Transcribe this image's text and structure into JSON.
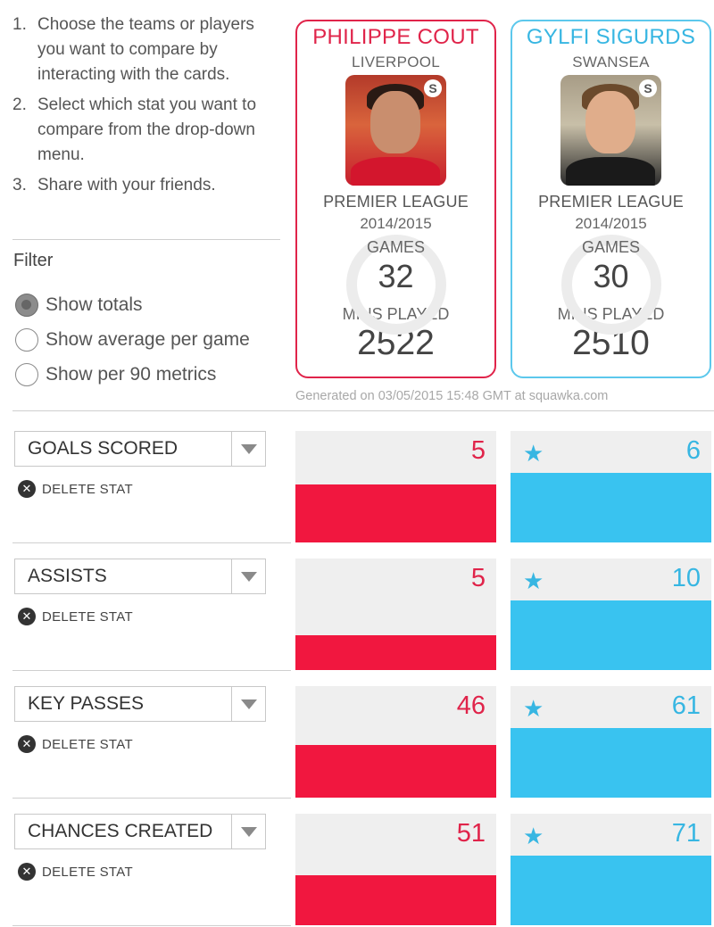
{
  "instructions": [
    {
      "num": "1.",
      "text": "Choose the teams or players you want to compare by interacting with the cards."
    },
    {
      "num": "2.",
      "text": "Select which stat you want to compare from the drop-down menu."
    },
    {
      "num": "3.",
      "text": "Share with your friends."
    }
  ],
  "filter": {
    "title": "Filter",
    "options": [
      {
        "label": "Show totals",
        "checked": true
      },
      {
        "label": "Show average per game",
        "checked": false
      },
      {
        "label": "Show per 90 metrics",
        "checked": false
      }
    ]
  },
  "players": [
    {
      "name": "PHILIPPE COUT",
      "club": "LIVERPOOL",
      "league": "PREMIER LEAGUE",
      "season": "2014/2015",
      "games_label": "GAMES",
      "games": "32",
      "mins_label": "MINS PLAYED",
      "mins": "2522",
      "color": "#e0244a",
      "badge": "S"
    },
    {
      "name": "GYLFI SIGURDS",
      "club": "SWANSEA",
      "league": "PREMIER LEAGUE",
      "season": "2014/2015",
      "games_label": "GAMES",
      "games": "30",
      "mins_label": "MINS PLAYED",
      "mins": "2510",
      "color": "#5cc8ec",
      "badge": "S"
    }
  ],
  "generated": "Generated on 03/05/2015 15:48 GMT at squawka.com",
  "delete_label": "DELETE STAT",
  "delete_icon": "x-circle-icon",
  "star_icon": "star-icon",
  "stats": [
    {
      "label": "GOALS SCORED",
      "p1": 5,
      "p2": 6,
      "p1_fill": 0.52,
      "p2_fill": 0.62,
      "winner": "p2"
    },
    {
      "label": "ASSISTS",
      "p1": 5,
      "p2": 10,
      "p1_fill": 0.31,
      "p2_fill": 0.62,
      "winner": "p2"
    },
    {
      "label": "KEY PASSES",
      "p1": 46,
      "p2": 61,
      "p1_fill": 0.47,
      "p2_fill": 0.62,
      "winner": "p2"
    },
    {
      "label": "CHANCES CREATED",
      "p1": 51,
      "p2": 71,
      "p1_fill": 0.45,
      "p2_fill": 0.62,
      "winner": "p2"
    }
  ]
}
